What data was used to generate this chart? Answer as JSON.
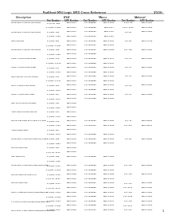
{
  "title": "RadHard MSI Logic SMD Cross Reference",
  "page": "1/10H",
  "background": "#ffffff",
  "rows": [
    {
      "desc": "Quadruple 2-Input NAND Gates",
      "lf_pn": "5 3/4 No. 388",
      "lf_smd": "5962-9651",
      "m_pn": "CD 1688885",
      "m_smd": "5962-47534",
      "n_pn": "5464, 89",
      "n_smd": "5962-67561"
    },
    {
      "desc": "",
      "lf_pn": "5 3/4No. 37084",
      "lf_smd": "5962-9651",
      "m_pn": "CD 1998888",
      "m_smd": "5962-0637",
      "n_pn": "54C1, 3180",
      "n_smd": "5962-07508"
    },
    {
      "desc": "Quadruple 2-Input NAND Gates",
      "lf_pn": "5 3/4No. 382",
      "lf_smd": "5962-4614",
      "m_pn": "CD 1383083",
      "m_smd": "5962-0475",
      "n_pn": "54A 82",
      "n_smd": "5962-07562"
    },
    {
      "desc": "",
      "lf_pn": "5 3/4No. 3182",
      "lf_smd": "5962-4633",
      "m_pn": "CD 1996000",
      "m_smd": "5962-0460",
      "n_pn": "",
      "n_smd": ""
    },
    {
      "desc": "Hex Inverters",
      "lf_pn": "5 3/4No. 884",
      "lf_smd": "5962-9619",
      "m_pn": "CD 1904895",
      "m_smd": "5962-47531",
      "n_pn": "54A 84",
      "n_smd": "5962-07048"
    },
    {
      "desc": "",
      "lf_pn": "5 3/4No. 37084",
      "lf_smd": "5962-9617",
      "m_pn": "CD 1994000",
      "m_smd": "5962-47537",
      "n_pn": "",
      "n_smd": ""
    },
    {
      "desc": "Quadruple 2-Input NAND Gates",
      "lf_pn": "5 3/4No. 388",
      "lf_smd": "5962-9619",
      "m_pn": "CD 1305065",
      "m_smd": "5962-10688",
      "n_pn": "54A 788",
      "n_smd": "5962-07531"
    },
    {
      "desc": "",
      "lf_pn": "5 3/4No. 3186",
      "lf_smd": "5962-9619",
      "m_pn": "CD 1395888",
      "m_smd": "",
      "n_pn": "",
      "n_smd": ""
    },
    {
      "desc": "Triple 4-Input NAND Gates",
      "lf_pn": "5 3/4No. 810",
      "lf_smd": "5962-9618",
      "m_pn": "CD 1305085",
      "m_smd": "5962-47577",
      "n_pn": "54A 10",
      "n_smd": "5962-07531"
    },
    {
      "desc": "",
      "lf_pn": "5 3/4No. 37010",
      "lf_smd": "5962-9657",
      "m_pn": "CD 1398888",
      "m_smd": "5962-47547",
      "n_pn": "",
      "n_smd": ""
    },
    {
      "desc": "Triple 4-Input NAND Gates",
      "lf_pn": "5 3/4No. 811",
      "lf_smd": "5962-9622",
      "m_pn": "CD 1283082",
      "m_smd": "5962-47530",
      "n_pn": "54A 11",
      "n_smd": "5962-07531"
    },
    {
      "desc": "",
      "lf_pn": "5 3/4No. 3102",
      "lf_smd": "5962-9653",
      "m_pn": "CD 1393888",
      "m_smd": "5962-47531",
      "n_pn": "",
      "n_smd": ""
    },
    {
      "desc": "Hex Inverter, Schmitt trigger",
      "lf_pn": "5 3/4No. 814",
      "lf_smd": "5962-9627",
      "m_pn": "CD 1304085",
      "m_smd": "5962-47530",
      "n_pn": "54A 14",
      "n_smd": "5962-07534"
    },
    {
      "desc": "",
      "lf_pn": "5 3/4No. 37014",
      "lf_smd": "5962-9657",
      "m_pn": "CD 1398888",
      "m_smd": "5962-47534",
      "n_pn": "",
      "n_smd": ""
    },
    {
      "desc": "Dual 4-Input NAND Gates",
      "lf_pn": "5 3/4No. 820",
      "lf_smd": "5962-9624",
      "m_pn": "CD 1203083",
      "m_smd": "5962-47573",
      "n_pn": "54A 20",
      "n_smd": "5962-07531"
    },
    {
      "desc": "",
      "lf_pn": "5 3/4No. 3202",
      "lf_smd": "5962-9637",
      "m_pn": "CD 1398888",
      "m_smd": "5962-47531",
      "n_pn": "",
      "n_smd": ""
    },
    {
      "desc": "Triple 4-Input NOR Gates",
      "lf_pn": "5 3/4No. 827",
      "lf_smd": "5962-9678",
      "m_pn": "CD 1397080",
      "m_smd": "5962-47584",
      "n_pn": "54A 27",
      "n_smd": "5962-07580"
    },
    {
      "desc": "",
      "lf_pn": "5 3/4No. 3272",
      "lf_smd": "5962-9678",
      "m_pn": "CD 1397988",
      "m_smd": "5962-47534",
      "n_pn": "",
      "n_smd": ""
    },
    {
      "desc": "Hex Asynchronous Buffers",
      "lf_pn": "5 3/4No. 334",
      "lf_smd": "5962-9658",
      "m_pn": "",
      "m_smd": "",
      "n_pn": "",
      "n_smd": ""
    },
    {
      "desc": "",
      "lf_pn": "5 3/4No. 3342",
      "lf_smd": "5962-9651",
      "m_pn": "",
      "m_smd": "",
      "n_pn": "",
      "n_smd": ""
    },
    {
      "desc": "4-Bit, BCD-BIN-BCD Senses",
      "lf_pn": "5 3/4No. 874",
      "lf_smd": "5962-9667",
      "m_pn": "",
      "m_smd": "",
      "n_pn": "",
      "n_smd": ""
    },
    {
      "desc": "",
      "lf_pn": "5 3/4No. 3742",
      "lf_smd": "5962-9651",
      "m_pn": "",
      "m_smd": "",
      "n_pn": "",
      "n_smd": ""
    },
    {
      "desc": "Dual D-Flip Flops with Clear & Preset",
      "lf_pn": "5 3/4No. 875",
      "lf_smd": "5962-9674",
      "m_pn": "CD 1315083",
      "m_smd": "5962-47532",
      "n_pn": "54A 75",
      "n_smd": "5962-08534"
    },
    {
      "desc": "",
      "lf_pn": "5 3/4No. 3752",
      "lf_smd": "5962-9651",
      "m_pn": "CD 1303015",
      "m_smd": "5962-47533",
      "n_pn": "54A 375",
      "n_smd": "5962-08574"
    },
    {
      "desc": "4-Bit comparators",
      "lf_pn": "5 3/4No. 887",
      "lf_smd": "5962-9614",
      "m_pn": "",
      "m_smd": "",
      "n_pn": "",
      "n_smd": ""
    },
    {
      "desc": "",
      "lf_pn": "5 3/4No. 3872",
      "lf_smd": "5962-9657",
      "m_pn": "CD 1396888",
      "m_smd": "5962-47563",
      "n_pn": "",
      "n_smd": ""
    },
    {
      "desc": "Quadruple 2-Input Exclusive-OR Gates",
      "lf_pn": "5 3/4No. 888",
      "lf_smd": "5962-9618",
      "m_pn": "CD 1384083",
      "m_smd": "5962-47533",
      "n_pn": "54A 86",
      "n_smd": "5962-08584"
    },
    {
      "desc": "",
      "lf_pn": "5 3/4No. 3882",
      "lf_smd": "5962-9619",
      "m_pn": "CD 1398888",
      "m_smd": "5962-47533",
      "n_pn": "",
      "n_smd": ""
    },
    {
      "desc": "Dual JK Flip-Flops",
      "lf_pn": "5 3/4No. 890",
      "lf_smd": "5962-9648",
      "m_pn": "",
      "m_smd": "",
      "n_pn": "",
      "n_smd": ""
    },
    {
      "desc": "",
      "lf_pn": "5 3/4 No. 3142",
      "lf_smd": "5962-9645",
      "m_pn": "",
      "m_smd": "",
      "n_pn": "",
      "n_smd": ""
    },
    {
      "desc": "HW Apparatus",
      "lf_pn": "5 3/4No. 898",
      "lf_smd": "5962-9618",
      "m_pn": "CD 1398888",
      "m_smd": "5962-07508",
      "n_pn": "",
      "n_smd": ""
    },
    {
      "desc": "",
      "lf_pn": "5 3/4No. 3182",
      "lf_smd": "",
      "m_pn": "",
      "m_smd": "",
      "n_pn": "",
      "n_smd": ""
    },
    {
      "desc": "Quadruple 2-Input Exclusive-NOR Gates",
      "lf_pn": "5 3/4No. 8100",
      "lf_smd": "5962-9648",
      "m_pn": "CD 1398088",
      "m_smd": "5962-47533",
      "n_pn": "54A 108",
      "n_smd": "5962-08594"
    },
    {
      "desc": "",
      "lf_pn": "5 3/4No. 31002",
      "lf_smd": "5962-9619",
      "m_pn": "CD 1398888",
      "m_smd": "5962-47534",
      "n_pn": "",
      "n_smd": ""
    },
    {
      "desc": "Dual JK Flip-Flop Clrd to Clr",
      "lf_pn": "5 3/4No. 8105",
      "lf_smd": "5962-9658",
      "m_pn": "CD 1315088",
      "m_smd": "5962-47588",
      "n_pn": "54A 108",
      "n_smd": "5962-07572"
    },
    {
      "desc": "",
      "lf_pn": "5 3/4 No. 3152",
      "lf_smd": "5962-4645",
      "m_pn": "CD 1391888",
      "m_smd": "5962-47576",
      "n_pn": "",
      "n_smd": ""
    },
    {
      "desc": "Dual JK Flip-Flops",
      "lf_pn": "5 3/4No. 8107",
      "lf_smd": "5962-9648",
      "m_pn": "CD 1383082",
      "m_smd": "5962-47530",
      "n_pn": "54A 107",
      "n_smd": "5962-07592"
    },
    {
      "desc": "",
      "lf_pn": "5 3/4 No. 3172",
      "lf_smd": "5962-9613",
      "m_pn": "CD 1398888",
      "m_smd": "5962-47569",
      "n_pn": "54A 3171",
      "n_smd": "5962-07534"
    },
    {
      "desc": "Octal 3-State Bus Driver/Demultiplexer",
      "lf_pn": "5 3/4No. 8138",
      "lf_smd": "5962-9658",
      "m_pn": "CD 1396085",
      "m_smd": "5962-47577",
      "n_pn": "54A 138",
      "n_smd": "5962-07522"
    },
    {
      "desc": "",
      "lf_pn": "5 3/4No. 31382",
      "lf_smd": "5962-4645",
      "m_pn": "CD 1395888",
      "m_smd": "5962-47544",
      "n_pn": "54A 3138",
      "n_smd": "5962-07534"
    },
    {
      "desc": "1-Line-to-8-Line Decoder/Demultiplexers",
      "lf_pn": "5 3/4No. 8138",
      "lf_smd": "5962-9664",
      "m_pn": "CD 1395085",
      "m_smd": "5962-47577",
      "n_pn": "54A 138",
      "n_smd": "5962-07522"
    },
    {
      "desc": "",
      "lf_pn": "5 3/4No. 31382",
      "lf_smd": "5962-4645",
      "m_pn": "CD 1395888",
      "m_smd": "5962-47544",
      "n_pn": "54A 3171",
      "n_smd": "5962-07534"
    },
    {
      "desc": "Dual 16-to-1 Mux and Encoder/Demultiplexers",
      "lf_pn": "5 3/4No. 8130",
      "lf_smd": "5962-9658",
      "m_pn": "CD 1204040",
      "m_smd": "5962-44900",
      "n_pn": "54A 134",
      "n_smd": "5962-07523"
    }
  ]
}
